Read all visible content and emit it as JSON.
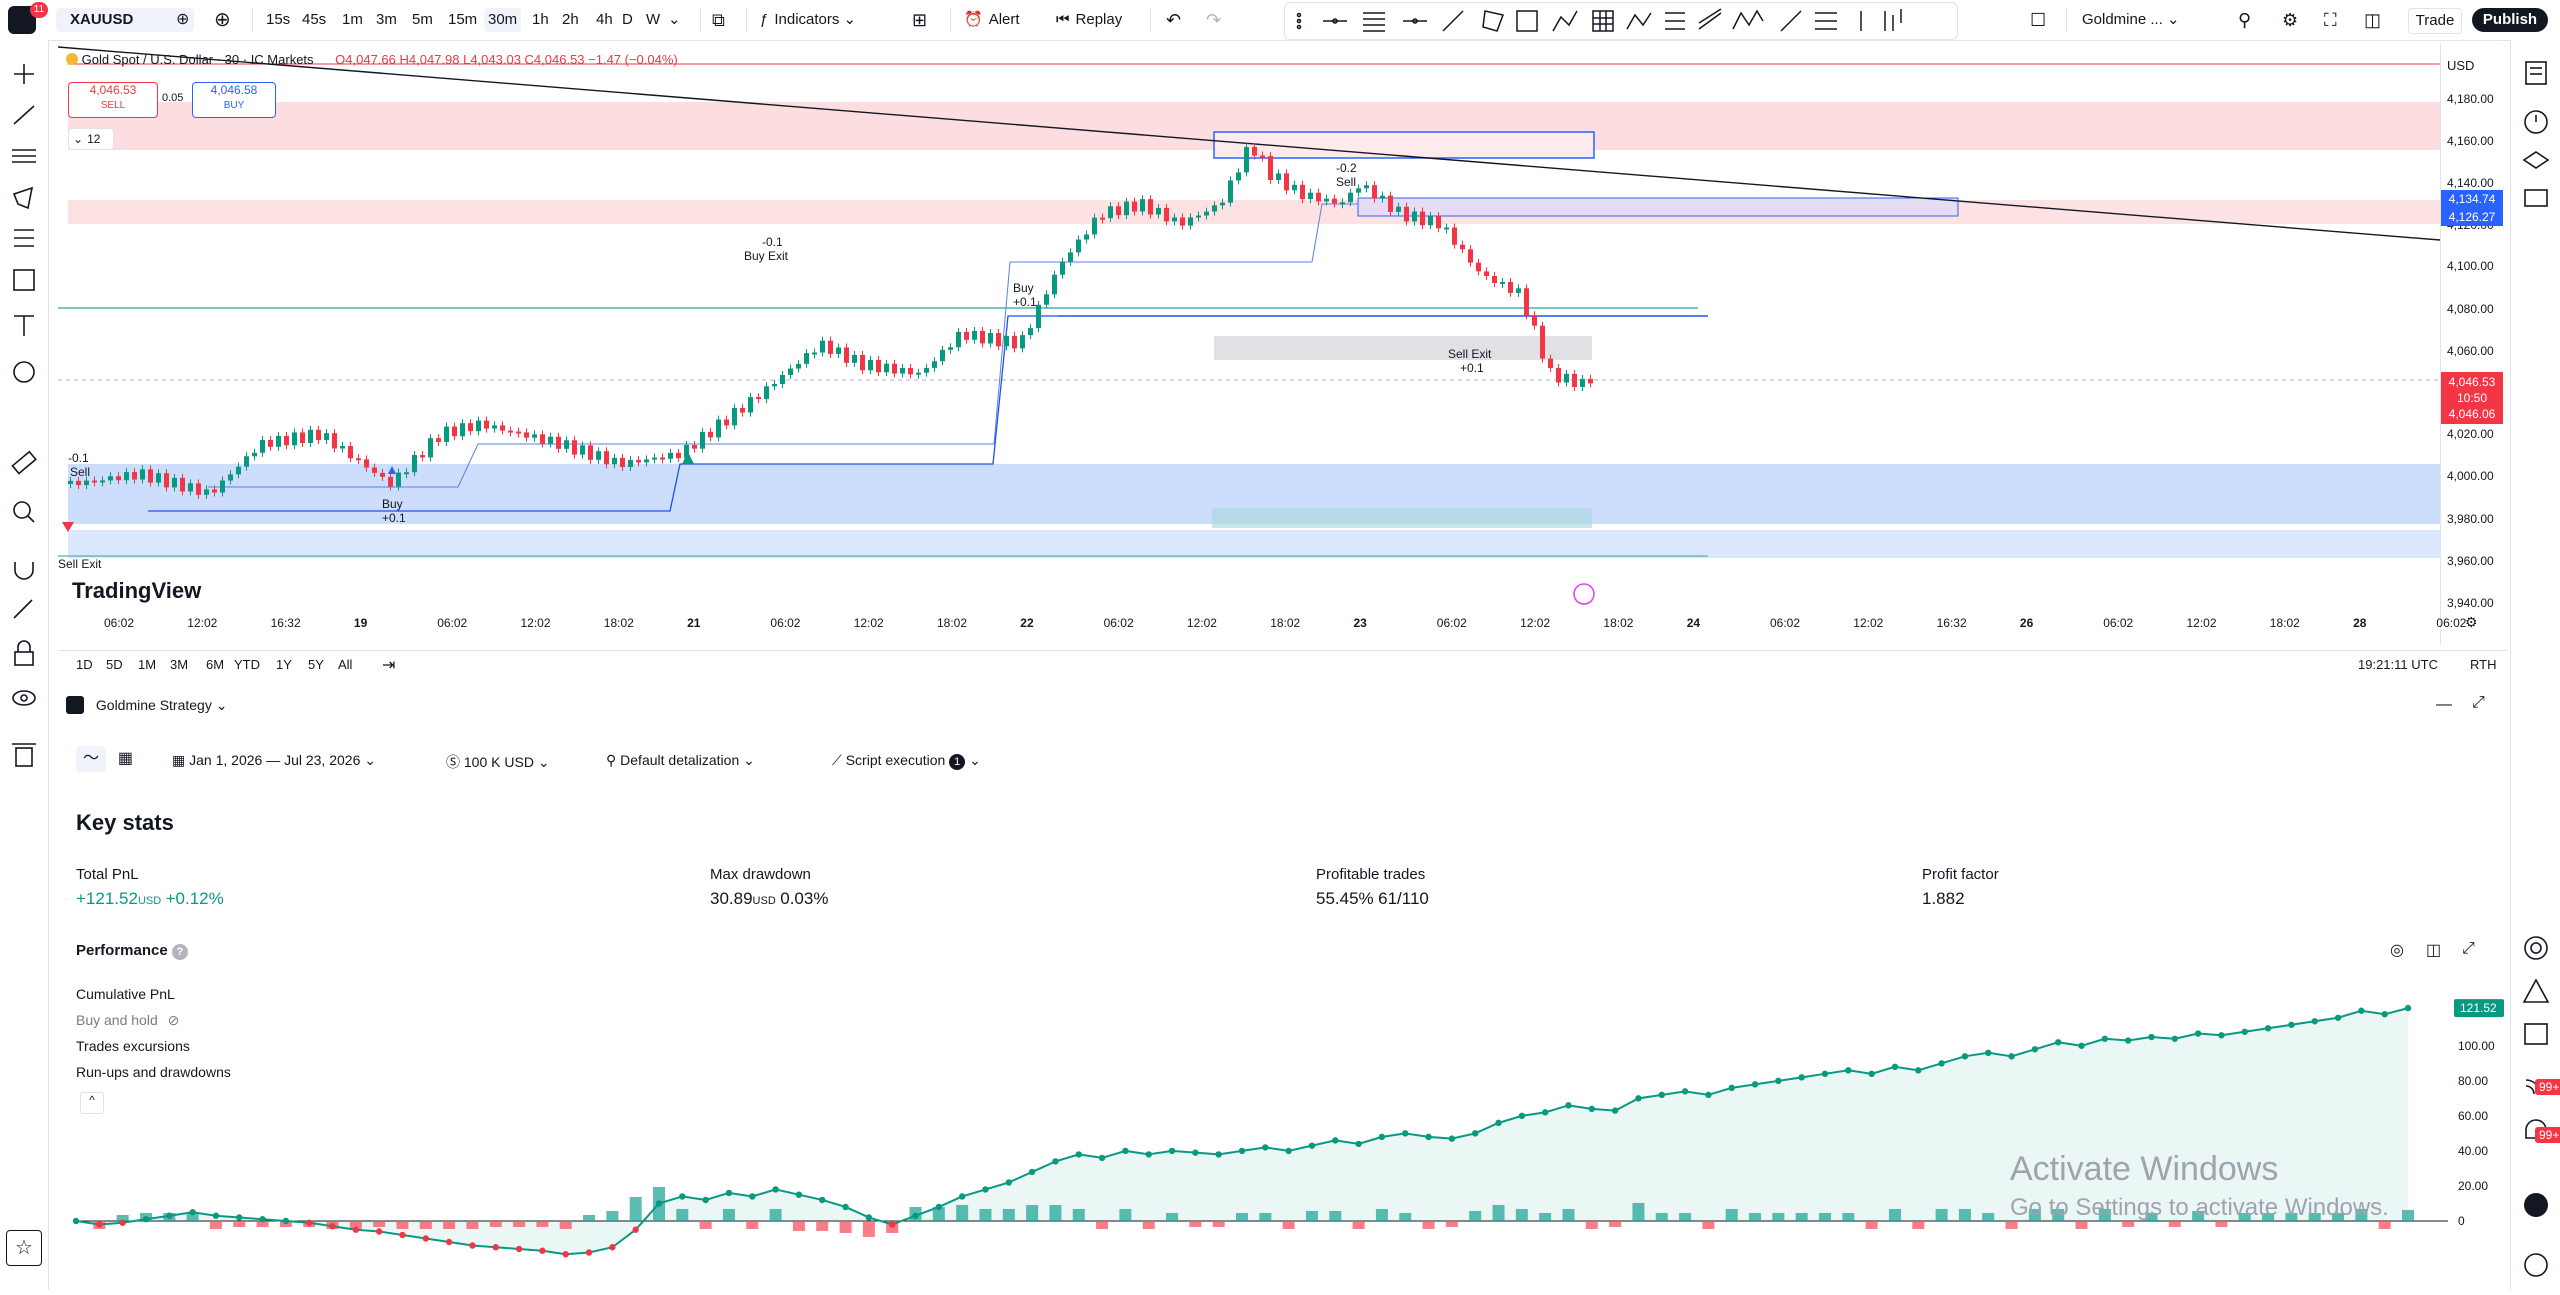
{
  "topbar": {
    "notif_count": "11",
    "symbol": "XAUUSD",
    "intervals": [
      "15s",
      "45s",
      "1m",
      "3m",
      "5m",
      "15m",
      "30m",
      "1h",
      "2h",
      "4h",
      "D",
      "W"
    ],
    "active_interval": "30m",
    "indicators_label": "Indicators",
    "alert_label": "Alert",
    "replay_label": "Replay",
    "layout_name": "Goldmine ...",
    "trade_label": "Trade",
    "publish_label": "Publish"
  },
  "legend": {
    "title": "Gold Spot / U.S. Dollar · 30 · IC Markets",
    "ohlc": "O4,047.66  H4,047.98  L4,043.03  C4,046.53  −1.47 (−0.04%)",
    "sell_price": "4,046.53",
    "sell_label": "SELL",
    "spread": "0.05",
    "buy_price": "4,046.58",
    "buy_label": "BUY",
    "collapse_count": "12"
  },
  "price_scale": {
    "currency": "USD",
    "ticks": [
      "4,180.00",
      "4,160.00",
      "4,140.00",
      "4,120.00",
      "4,100.00",
      "4,080.00",
      "4,060.00",
      "4,040.00",
      "4,020.00",
      "4,000.00",
      "3,980.00",
      "3,960.00",
      "3,940.00"
    ],
    "label_a": "4,134.74",
    "label_b": "4,126.27",
    "current_price": "4,046.53",
    "countdown": "10:50",
    "bid_price": "4,046.06"
  },
  "time_scale": {
    "ticks": [
      "06:02",
      "12:02",
      "16:32",
      "19",
      "06:02",
      "12:02",
      "18:02",
      "21",
      "06:02",
      "12:02",
      "18:02",
      "22",
      "06:02",
      "12:02",
      "18:02",
      "23",
      "06:02",
      "12:02",
      "18:02",
      "24",
      "06:02",
      "12:02",
      "16:32",
      "26",
      "06:02",
      "12:02",
      "18:02",
      "28",
      "06:02"
    ]
  },
  "chart_annotations": {
    "sell_1_qty": "-0.1",
    "sell_1": "Sell",
    "sell_exit_1": "Sell Exit",
    "buy_1": "Buy",
    "buy_1_qty": "+0.1",
    "buy_exit_qty": "-0.1",
    "buy_exit": "Buy Exit",
    "buy_2": "Buy",
    "buy_2_qty": "+0.1",
    "sell_2_qty": "-0.2",
    "sell_2": "Sell",
    "sell_exit_2": "Sell Exit",
    "sell_exit_2_qty": "+0.1",
    "watermark": "TradingView"
  },
  "range_bar": {
    "ranges": [
      "1D",
      "5D",
      "1M",
      "3M",
      "6M",
      "YTD",
      "1Y",
      "5Y",
      "All"
    ],
    "clock": "19:21:11 UTC",
    "session": "RTH"
  },
  "strategy_panel": {
    "tab_name": "Goldmine Strategy",
    "date_range": "Jan 1, 2026 — Jul 23, 2026",
    "capital": "100 K USD",
    "detail": "Default detalization",
    "execution": "Script execution",
    "execution_badge": "1",
    "key_stats_title": "Key stats",
    "stats": [
      {
        "label": "Total PnL",
        "value": "+121.52",
        "unit": "USD",
        "extra": "+0.12%"
      },
      {
        "label": "Max drawdown",
        "value": "30.89",
        "unit": "USD",
        "extra": "0.03%"
      },
      {
        "label": "Profitable trades",
        "value": "55.45%",
        "unit": "",
        "extra": "61/110"
      },
      {
        "label": "Profit factor",
        "value": "1.882",
        "unit": "",
        "extra": ""
      }
    ],
    "performance_title": "Performance",
    "perf_legend": [
      "Cumulative PnL",
      "Buy and hold",
      "Trades excursions",
      "Run-ups and drawdowns"
    ],
    "perf_y_ticks": [
      "100.00",
      "80.00",
      "60.00",
      "40.00",
      "20.00",
      "0"
    ],
    "perf_last_value": "121.52",
    "activate_title": "Activate Windows",
    "activate_sub": "Go to Settings to activate Windows."
  },
  "right_badges": [
    "99+",
    "99+"
  ],
  "colors": {
    "accent": "#2962ff",
    "bull": "#089981",
    "bear": "#f23645",
    "sell_red": "#f23645",
    "publish_bg": "#131722"
  },
  "chart_data": {
    "type": "line",
    "title": "",
    "series": [
      {
        "name": "Cumulative PnL",
        "values": [
          0,
          -2,
          -1,
          1,
          3,
          5,
          3,
          2,
          1,
          0,
          -1,
          -3,
          -5,
          -6,
          -8,
          -10,
          -12,
          -14,
          -15,
          -16,
          -17,
          -19,
          -18,
          -15,
          -5,
          10,
          14,
          12,
          16,
          14,
          18,
          15,
          12,
          8,
          2,
          -2,
          3,
          8,
          14,
          18,
          22,
          28,
          34,
          38,
          36,
          40,
          38,
          40,
          39,
          38,
          40,
          42,
          40,
          43,
          46,
          44,
          48,
          50,
          48,
          47,
          50,
          56,
          60,
          62,
          66,
          64,
          63,
          70,
          72,
          74,
          72,
          76,
          78,
          80,
          82,
          84,
          86,
          84,
          88,
          86,
          90,
          94,
          96,
          94,
          98,
          102,
          100,
          104,
          103,
          105,
          104,
          107,
          106,
          108,
          110,
          112,
          114,
          116,
          120,
          118,
          121.52
        ]
      }
    ],
    "ylim": [
      -20,
      125
    ],
    "grid": false,
    "legend": "top-left"
  }
}
